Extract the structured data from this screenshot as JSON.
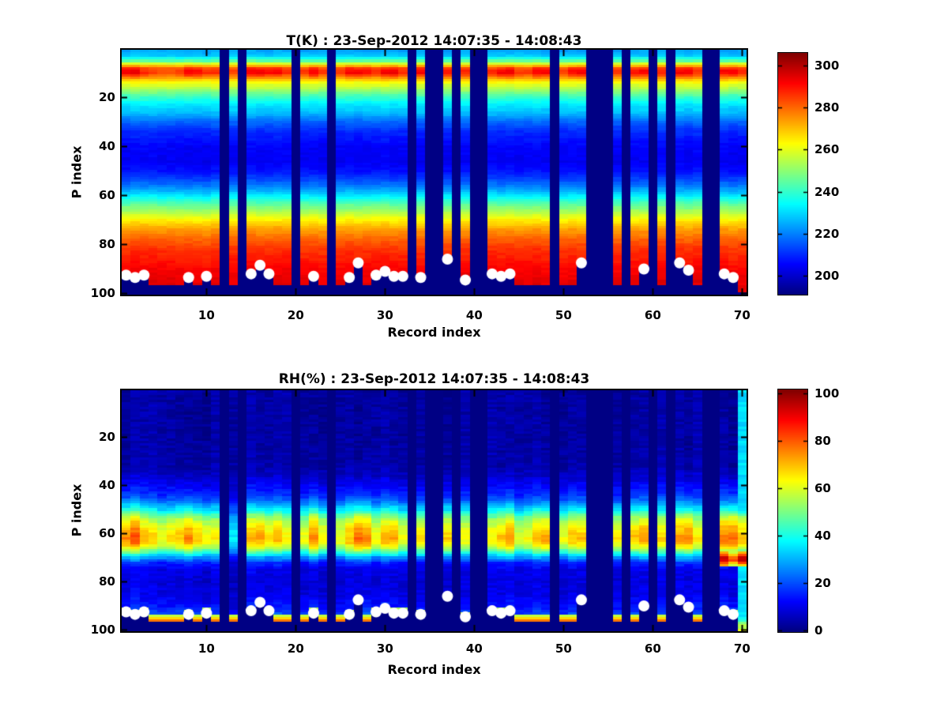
{
  "figure": {
    "background": "#ffffff",
    "missing_data_color": "#000084",
    "dot_color": "#ffffff"
  },
  "chart_data": [
    {
      "type": "heatmap",
      "title": "T(K) : 23-Sep-2012 14:07:35 - 14:08:43",
      "xlabel": "Record index",
      "ylabel": "P index",
      "colormap": "jet",
      "n_records": 70,
      "n_levels": 100,
      "y_reversed": true,
      "grid": false,
      "xticks": [
        10,
        20,
        30,
        40,
        50,
        60,
        70
      ],
      "yticks": [
        20,
        40,
        60,
        80,
        100
      ],
      "caxis": [
        191,
        306
      ],
      "colorbar_ticks": [
        300,
        280,
        260,
        240,
        220,
        200
      ],
      "colorbar_position": "right",
      "missing_records": [
        12,
        14,
        20,
        24,
        33,
        35,
        36,
        38,
        40,
        41,
        49,
        53,
        54,
        55,
        57,
        60,
        62,
        66,
        67
      ],
      "surface_dots": [
        [
          1,
          92.5
        ],
        [
          2,
          93.5
        ],
        [
          3,
          92.5
        ],
        [
          8,
          93.5
        ],
        [
          10,
          93
        ],
        [
          15,
          92
        ],
        [
          16,
          88.5
        ],
        [
          17,
          92
        ],
        [
          22,
          93
        ],
        [
          26,
          93.5
        ],
        [
          27,
          87.5
        ],
        [
          29,
          92.5
        ],
        [
          30,
          91
        ],
        [
          31,
          93
        ],
        [
          32,
          93
        ],
        [
          34,
          93.5
        ],
        [
          37,
          86
        ],
        [
          39,
          94.5
        ],
        [
          42,
          92
        ],
        [
          43,
          93
        ],
        [
          44,
          92
        ],
        [
          52,
          87.5
        ],
        [
          59,
          90
        ],
        [
          63,
          87.5
        ],
        [
          64,
          90.5
        ],
        [
          68,
          92
        ],
        [
          69,
          93.5
        ]
      ],
      "default_floor": 96.5,
      "floor_override": {
        "70": 99
      },
      "profile": [
        [
          1,
          224
        ],
        [
          3,
          228
        ],
        [
          5,
          244
        ],
        [
          6,
          257
        ],
        [
          7,
          268
        ],
        [
          8,
          277
        ],
        [
          10,
          278
        ],
        [
          12,
          272
        ],
        [
          14,
          262
        ],
        [
          16,
          255
        ],
        [
          18,
          247
        ],
        [
          20,
          240
        ],
        [
          23,
          232
        ],
        [
          26,
          227
        ],
        [
          30,
          217
        ],
        [
          34,
          210
        ],
        [
          40,
          205
        ],
        [
          46,
          204
        ],
        [
          50,
          207
        ],
        [
          54,
          214
        ],
        [
          58,
          225
        ],
        [
          62,
          239
        ],
        [
          66,
          252
        ],
        [
          70,
          264
        ],
        [
          74,
          274
        ],
        [
          78,
          281
        ],
        [
          82,
          286
        ],
        [
          86,
          289
        ],
        [
          90,
          292
        ],
        [
          94,
          294
        ],
        [
          100,
          295
        ]
      ],
      "amp_mode": "band",
      "band": {
        "center": 9.5,
        "sigma": 2.3,
        "delta": 16
      },
      "amplitudes": [
        1,
        1,
        0.55,
        0.35,
        0.3,
        0.35,
        0.5,
        1,
        0.9,
        0.65,
        0.5,
        0,
        0.4,
        0,
        0.9,
        1,
        0.8,
        0.9,
        0.5,
        0,
        0.55,
        1,
        0.6,
        0,
        0.45,
        0.9,
        1,
        0.85,
        0.5,
        0.9,
        1,
        0.6,
        0,
        0.9,
        0,
        0,
        0.85,
        0,
        0.6,
        0,
        0,
        0.55,
        0.9,
        1,
        0.5,
        0.5,
        0.9,
        0.95,
        0,
        0.5,
        0.8,
        0.9,
        0,
        0,
        0,
        0.55,
        0,
        0.8,
        0.9,
        0,
        0.65,
        0,
        0.9,
        1,
        0.45,
        0,
        0,
        0.9,
        1,
        0.6
      ],
      "noise": 3,
      "col_noise": 2
    },
    {
      "type": "heatmap",
      "title": "RH(%) : 23-Sep-2012 14:07:35 - 14:08:43",
      "xlabel": "Record index",
      "ylabel": "P index",
      "colormap": "jet",
      "n_records": 70,
      "n_levels": 100,
      "y_reversed": true,
      "grid": false,
      "xticks": [
        10,
        20,
        30,
        40,
        50,
        60,
        70
      ],
      "yticks": [
        20,
        40,
        60,
        80,
        100
      ],
      "caxis": [
        -0.5,
        101.5
      ],
      "colorbar_ticks": [
        100,
        80,
        60,
        40,
        20,
        0
      ],
      "colorbar_position": "right",
      "missing_records": [
        12,
        14,
        20,
        24,
        33,
        35,
        36,
        38,
        40,
        41,
        49,
        53,
        54,
        55,
        57,
        60,
        62,
        66,
        67
      ],
      "surface_dots": [
        [
          1,
          92.5
        ],
        [
          2,
          93.5
        ],
        [
          3,
          92.5
        ],
        [
          8,
          93.5
        ],
        [
          10,
          93
        ],
        [
          15,
          92
        ],
        [
          16,
          88.5
        ],
        [
          17,
          92
        ],
        [
          22,
          93
        ],
        [
          26,
          93.5
        ],
        [
          27,
          87.5
        ],
        [
          29,
          92.5
        ],
        [
          30,
          91
        ],
        [
          31,
          93
        ],
        [
          32,
          93
        ],
        [
          34,
          93.5
        ],
        [
          37,
          86
        ],
        [
          39,
          94.5
        ],
        [
          42,
          92
        ],
        [
          43,
          93
        ],
        [
          44,
          92
        ],
        [
          52,
          87.5
        ],
        [
          59,
          90
        ],
        [
          63,
          87.5
        ],
        [
          64,
          90.5
        ],
        [
          68,
          92
        ],
        [
          69,
          93.5
        ]
      ],
      "default_floor": 96.5,
      "floor_override": {
        "70": 101
      },
      "profile": [
        [
          1,
          3
        ],
        [
          20,
          3
        ],
        [
          32,
          4
        ],
        [
          36,
          7
        ],
        [
          40,
          12
        ],
        [
          44,
          17
        ],
        [
          47,
          25
        ],
        [
          50,
          37
        ],
        [
          52,
          48
        ],
        [
          54,
          56
        ],
        [
          56,
          61
        ],
        [
          58,
          65
        ],
        [
          60,
          68
        ],
        [
          62,
          70
        ],
        [
          64,
          67
        ],
        [
          66,
          58
        ],
        [
          68,
          44
        ],
        [
          70,
          28
        ],
        [
          72,
          16
        ],
        [
          75,
          10
        ],
        [
          80,
          9
        ],
        [
          85,
          10
        ],
        [
          90,
          14
        ],
        [
          92,
          18
        ],
        [
          94,
          22
        ],
        [
          96,
          20
        ],
        [
          100,
          15
        ]
      ],
      "amp_mode": "scale",
      "amp_floor": 3,
      "amplitudes": [
        1.1,
        1.15,
        1,
        0.95,
        0.9,
        0.95,
        1,
        1.1,
        1,
        0.95,
        0.9,
        0,
        0.5,
        0,
        1,
        1.05,
        0.95,
        1,
        0.9,
        0,
        0.9,
        1.1,
        0.95,
        0,
        0.9,
        1,
        1.15,
        1.1,
        0.9,
        1,
        1.05,
        0.9,
        0,
        0.95,
        0,
        0,
        1,
        0,
        0.9,
        0,
        0,
        0.9,
        1,
        1.05,
        0.85,
        0.9,
        1,
        1.05,
        0,
        0.9,
        1,
        1,
        0,
        0,
        0,
        0.95,
        0,
        1,
        1.05,
        0,
        0.95,
        0,
        1.05,
        1.1,
        0.9,
        0,
        0,
        1.1,
        1.15,
        1
      ],
      "deep_band": {
        "center": 70.5,
        "slope": 12,
        "halfwidth": 2.5,
        "records": {
          "68": 100,
          "69": 88,
          "70": 100
        }
      },
      "surface_wet": {
        "value": 82,
        "fade": 10,
        "min_floor": 93,
        "max_floor": 98
      },
      "column_override": {
        "70": [
          [
            94,
            35
          ],
          [
            96,
            45
          ],
          [
            98,
            55
          ],
          [
            100,
            60
          ]
        ]
      },
      "noise": 5,
      "col_noise": 4
    }
  ]
}
